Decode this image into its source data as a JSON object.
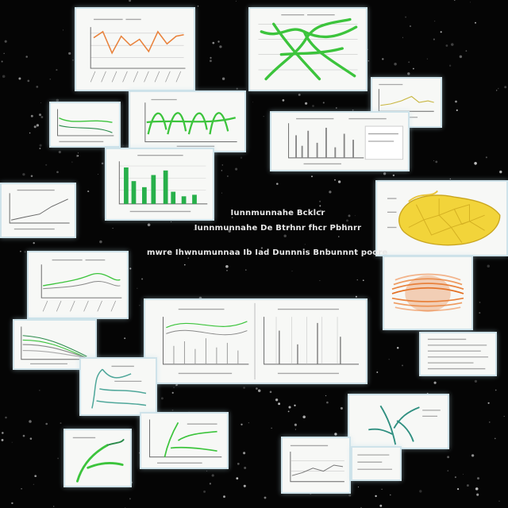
{
  "center_text": {
    "line1": "Iunnmunnahe Bcklcr",
    "line2": "Iunnmunnahe De Btrhnr fhcr Pbhnrr",
    "line3": "mwre Ihwnumunnaa Ib Iad Dunnnis Bnbunnnt poore"
  },
  "colors": {
    "background": "#050505",
    "card": "#f7f8f6",
    "card_border": "#cfe3ea",
    "green": "#3cc43c",
    "dark_green": "#1f8f4a",
    "orange": "#e9823c",
    "yellow": "#f2d43a",
    "teal": "#4fa79a"
  }
}
